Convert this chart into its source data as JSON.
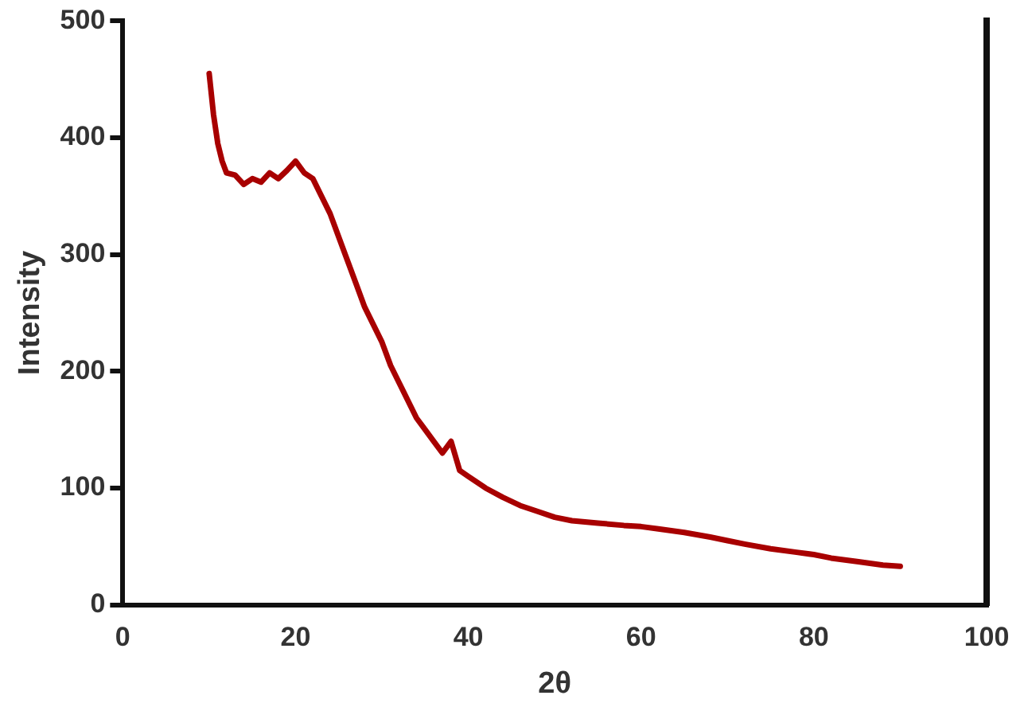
{
  "chart_data": {
    "type": "line",
    "xlabel": "2θ",
    "ylabel": "Intensity",
    "series": [
      {
        "color": "#a80000",
        "x": [
          10,
          10.5,
          11,
          11.5,
          12,
          13,
          14,
          15,
          16,
          17,
          18,
          19,
          20,
          21,
          22,
          23,
          24,
          25,
          26,
          27,
          28,
          29,
          30,
          31,
          32,
          33,
          34,
          35,
          36,
          37,
          38,
          39,
          40,
          42,
          44,
          46,
          48,
          50,
          52,
          55,
          58,
          60,
          62,
          65,
          68,
          70,
          72,
          75,
          78,
          80,
          82,
          85,
          88,
          90
        ],
        "values": [
          455,
          420,
          395,
          380,
          370,
          368,
          360,
          365,
          362,
          370,
          365,
          372,
          380,
          370,
          365,
          350,
          335,
          315,
          295,
          275,
          255,
          240,
          225,
          205,
          190,
          175,
          160,
          150,
          140,
          130,
          140,
          115,
          110,
          100,
          92,
          85,
          80,
          75,
          72,
          70,
          68,
          67,
          65,
          62,
          58,
          55,
          52,
          48,
          45,
          43,
          40,
          37,
          34,
          33
        ]
      }
    ],
    "xlim": [
      0,
      100
    ],
    "xticks": [
      0,
      20,
      40,
      60,
      80,
      100
    ],
    "ylim": [
      0,
      500
    ],
    "yticks": [
      0,
      100,
      200,
      300,
      400,
      500
    ],
    "grid": false,
    "legend": false,
    "marker": "none",
    "line_style": "solid"
  }
}
